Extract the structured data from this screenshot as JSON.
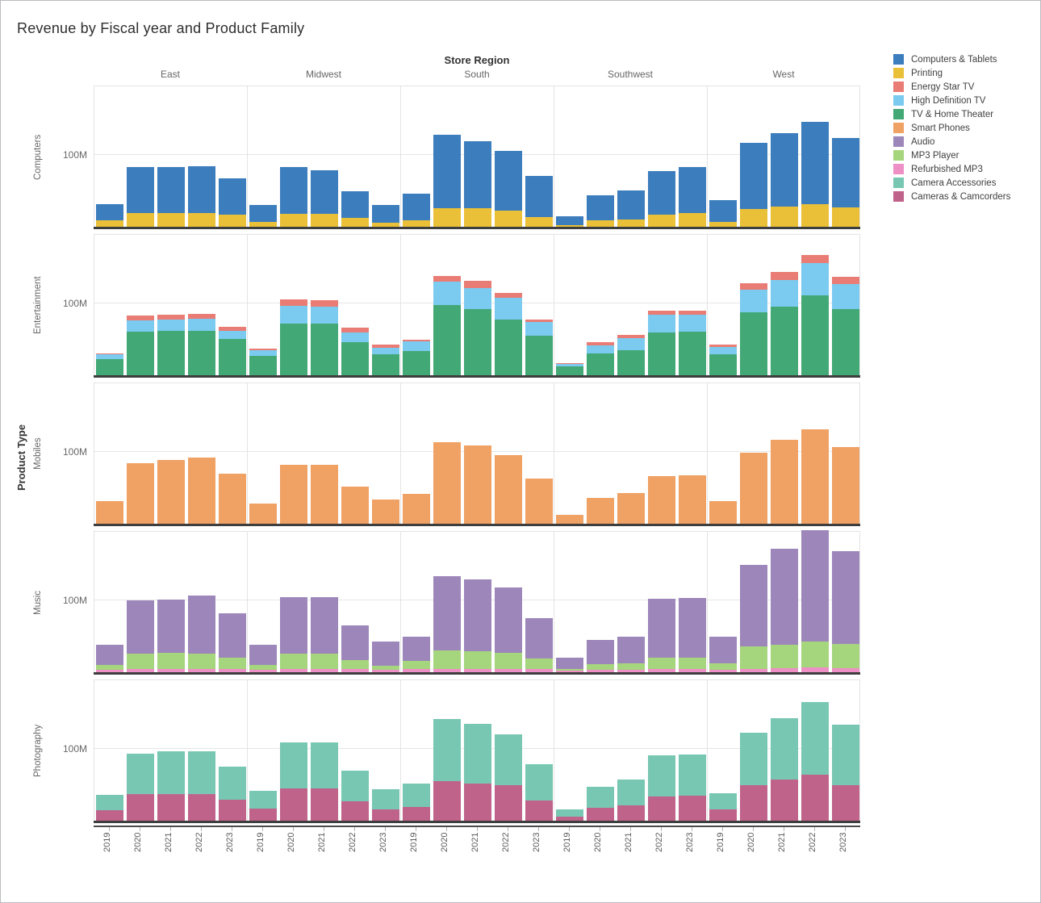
{
  "title": "Revenue by Fiscal year and Product Family",
  "column_header": {
    "title": "Store Region"
  },
  "row_header": {
    "title": "Product Type"
  },
  "y_axis": {
    "tick_label": "100M"
  },
  "colors": {
    "Computers & Tablets": "#3c7dbd",
    "Printing": "#eac038",
    "Energy Star TV": "#e97c74",
    "High Definition TV": "#7bcbf0",
    "TV & Home Theater": "#42a875",
    "Smart Phones": "#f0a164",
    "Audio": "#9d87ba",
    "MP3 Player": "#a5d57d",
    "Refurbished MP3": "#ee90c5",
    "Camera Accessories": "#78c7b3",
    "Cameras & Camcorders": "#c0638b"
  },
  "legend": {
    "items": [
      "Computers & Tablets",
      "Printing",
      "Energy Star TV",
      "High Definition TV",
      "TV & Home Theater",
      "Smart Phones",
      "Audio",
      "MP3 Player",
      "Refurbished MP3",
      "Camera Accessories",
      "Cameras & Camcorders"
    ]
  },
  "chart_data": {
    "type": "bar",
    "stacked": true,
    "unit": "M",
    "title": "Revenue by Fiscal year and Product Family",
    "x": [
      "2019",
      "2020",
      "2021",
      "2022",
      "2023"
    ],
    "ylim": [
      0,
      195
    ],
    "y_gridlines": [
      100,
      195
    ],
    "y_tick_labels": [
      "100M"
    ],
    "legend_position": "top-right",
    "facets": {
      "columns_title": "Store Region",
      "columns": [
        "East",
        "Midwest",
        "South",
        "Southwest",
        "West"
      ],
      "rows_title": "Product Type",
      "rows": [
        "Computers",
        "Entertainment",
        "Mobiles",
        "Music",
        "Photography"
      ]
    },
    "cells": [
      {
        "row": "Computers",
        "region": "East",
        "series": [
          {
            "name": "Printing",
            "values": [
              10,
              20,
              20,
              20,
              18
            ]
          },
          {
            "name": "Computers & Tablets",
            "values": [
              22,
              63,
              63,
              64,
              49
            ]
          }
        ]
      },
      {
        "row": "Computers",
        "region": "Midwest",
        "series": [
          {
            "name": "Printing",
            "values": [
              8,
              19,
              19,
              13,
              7
            ]
          },
          {
            "name": "Computers & Tablets",
            "values": [
              23,
              64,
              59,
              37,
              24
            ]
          }
        ]
      },
      {
        "row": "Computers",
        "region": "South",
        "series": [
          {
            "name": "Printing",
            "values": [
              10,
              26,
              26,
              23,
              14
            ]
          },
          {
            "name": "Computers & Tablets",
            "values": [
              36,
              101,
              92,
              82,
              57
            ]
          }
        ]
      },
      {
        "row": "Computers",
        "region": "Southwest",
        "series": [
          {
            "name": "Printing",
            "values": [
              3,
              10,
              11,
              18,
              20
            ]
          },
          {
            "name": "Computers & Tablets",
            "values": [
              12,
              34,
              40,
              59,
              63
            ]
          }
        ]
      },
      {
        "row": "Computers",
        "region": "West",
        "series": [
          {
            "name": "Printing",
            "values": [
              8,
              25,
              29,
              32,
              28
            ]
          },
          {
            "name": "Computers & Tablets",
            "values": [
              30,
              91,
              100,
              112,
              94
            ]
          }
        ]
      },
      {
        "row": "Entertainment",
        "region": "East",
        "series": [
          {
            "name": "TV & Home Theater",
            "values": [
              23,
              61,
              62,
              62,
              51
            ]
          },
          {
            "name": "High Definition TV",
            "values": [
              7,
              15,
              15,
              16,
              11
            ]
          },
          {
            "name": "Energy Star TV",
            "values": [
              1,
              7,
              7,
              7,
              5
            ]
          }
        ]
      },
      {
        "row": "Entertainment",
        "region": "Midwest",
        "series": [
          {
            "name": "TV & Home Theater",
            "values": [
              28,
              72,
              72,
              46,
              30
            ]
          },
          {
            "name": "High Definition TV",
            "values": [
              7,
              24,
              23,
              14,
              9
            ]
          },
          {
            "name": "Energy Star TV",
            "values": [
              3,
              9,
              9,
              6,
              4
            ]
          }
        ]
      },
      {
        "row": "Entertainment",
        "region": "South",
        "series": [
          {
            "name": "TV & Home Theater",
            "values": [
              34,
              97,
              91,
              77,
              55
            ]
          },
          {
            "name": "High Definition TV",
            "values": [
              13,
              32,
              29,
              30,
              19
            ]
          },
          {
            "name": "Energy Star TV",
            "values": [
              3,
              8,
              10,
              6,
              3
            ]
          }
        ]
      },
      {
        "row": "Entertainment",
        "region": "Southwest",
        "series": [
          {
            "name": "TV & Home Theater",
            "values": [
              13,
              31,
              35,
              60,
              61
            ]
          },
          {
            "name": "High Definition TV",
            "values": [
              3,
              11,
              17,
              24,
              23
            ]
          },
          {
            "name": "Energy Star TV",
            "values": [
              2,
              4,
              4,
              5,
              5
            ]
          }
        ]
      },
      {
        "row": "Entertainment",
        "region": "West",
        "series": [
          {
            "name": "TV & Home Theater",
            "values": [
              30,
              87,
              95,
              110,
              92
            ]
          },
          {
            "name": "High Definition TV",
            "values": [
              10,
              31,
              36,
              44,
              34
            ]
          },
          {
            "name": "Energy Star TV",
            "values": [
              3,
              9,
              11,
              11,
              10
            ]
          }
        ]
      },
      {
        "row": "Mobiles",
        "region": "East",
        "series": [
          {
            "name": "Smart Phones",
            "values": [
              32,
              84,
              88,
              91,
              69
            ]
          }
        ]
      },
      {
        "row": "Mobiles",
        "region": "Midwest",
        "series": [
          {
            "name": "Smart Phones",
            "values": [
              29,
              81,
              81,
              52,
              34
            ]
          }
        ]
      },
      {
        "row": "Mobiles",
        "region": "South",
        "series": [
          {
            "name": "Smart Phones",
            "values": [
              42,
              112,
              108,
              95,
              63
            ]
          }
        ]
      },
      {
        "row": "Mobiles",
        "region": "Southwest",
        "series": [
          {
            "name": "Smart Phones",
            "values": [
              13,
              36,
              43,
              66,
              67
            ]
          }
        ]
      },
      {
        "row": "Mobiles",
        "region": "West",
        "series": [
          {
            "name": "Smart Phones",
            "values": [
              32,
              98,
              116,
              130,
              106
            ]
          }
        ]
      },
      {
        "row": "Music",
        "region": "East",
        "series": [
          {
            "name": "Refurbished MP3",
            "values": [
              4,
              6,
              6,
              6,
              5
            ]
          },
          {
            "name": "MP3 Player",
            "values": [
              7,
              21,
              22,
              21,
              16
            ]
          },
          {
            "name": "Audio",
            "values": [
              28,
              72,
              72,
              79,
              61
            ]
          }
        ]
      },
      {
        "row": "Music",
        "region": "Midwest",
        "series": [
          {
            "name": "Refurbished MP3",
            "values": [
              4,
              5,
              5,
              5,
              4
            ]
          },
          {
            "name": "MP3 Player",
            "values": [
              7,
              22,
              22,
              13,
              6
            ]
          },
          {
            "name": "Audio",
            "values": [
              28,
              77,
              77,
              47,
              33
            ]
          }
        ]
      },
      {
        "row": "Music",
        "region": "South",
        "series": [
          {
            "name": "Refurbished MP3",
            "values": [
              5,
              6,
              6,
              6,
              5
            ]
          },
          {
            "name": "MP3 Player",
            "values": [
              12,
              25,
              24,
              22,
              15
            ]
          },
          {
            "name": "Audio",
            "values": [
              33,
              101,
              98,
              89,
              55
            ]
          }
        ]
      },
      {
        "row": "Music",
        "region": "Southwest",
        "series": [
          {
            "name": "Refurbished MP3",
            "values": [
              3,
              4,
              4,
              5,
              5
            ]
          },
          {
            "name": "MP3 Player",
            "values": [
              3,
              8,
              9,
              16,
              16
            ]
          },
          {
            "name": "Audio",
            "values": [
              15,
              33,
              37,
              80,
              81
            ]
          }
        ]
      },
      {
        "row": "Music",
        "region": "West",
        "series": [
          {
            "name": "Refurbished MP3",
            "values": [
              4,
              6,
              7,
              8,
              7
            ]
          },
          {
            "name": "MP3 Player",
            "values": [
              9,
              30,
              32,
              35,
              33
            ]
          },
          {
            "name": "Audio",
            "values": [
              37,
              112,
              131,
              152,
              126
            ]
          }
        ]
      },
      {
        "row": "Photography",
        "region": "East",
        "series": [
          {
            "name": "Cameras & Camcorders",
            "values": [
              15,
              38,
              38,
              38,
              30
            ]
          },
          {
            "name": "Camera Accessories",
            "values": [
              21,
              55,
              58,
              58,
              45
            ]
          }
        ]
      },
      {
        "row": "Photography",
        "region": "Midwest",
        "series": [
          {
            "name": "Cameras & Camcorders",
            "values": [
              18,
              45,
              45,
              28,
              17
            ]
          },
          {
            "name": "Camera Accessories",
            "values": [
              24,
              63,
              63,
              41,
              27
            ]
          }
        ]
      },
      {
        "row": "Photography",
        "region": "South",
        "series": [
          {
            "name": "Cameras & Camcorders",
            "values": [
              20,
              55,
              52,
              50,
              29
            ]
          },
          {
            "name": "Camera Accessories",
            "values": [
              32,
              85,
              81,
              69,
              49
            ]
          }
        ]
      },
      {
        "row": "Photography",
        "region": "Southwest",
        "series": [
          {
            "name": "Cameras & Camcorders",
            "values": [
              7,
              19,
              22,
              34,
              35
            ]
          },
          {
            "name": "Camera Accessories",
            "values": [
              10,
              28,
              35,
              56,
              57
            ]
          }
        ]
      },
      {
        "row": "Photography",
        "region": "West",
        "series": [
          {
            "name": "Cameras & Camcorders",
            "values": [
              16,
              50,
              57,
              64,
              50
            ]
          },
          {
            "name": "Camera Accessories",
            "values": [
              23,
              71,
              84,
              99,
              82
            ]
          }
        ]
      }
    ]
  }
}
